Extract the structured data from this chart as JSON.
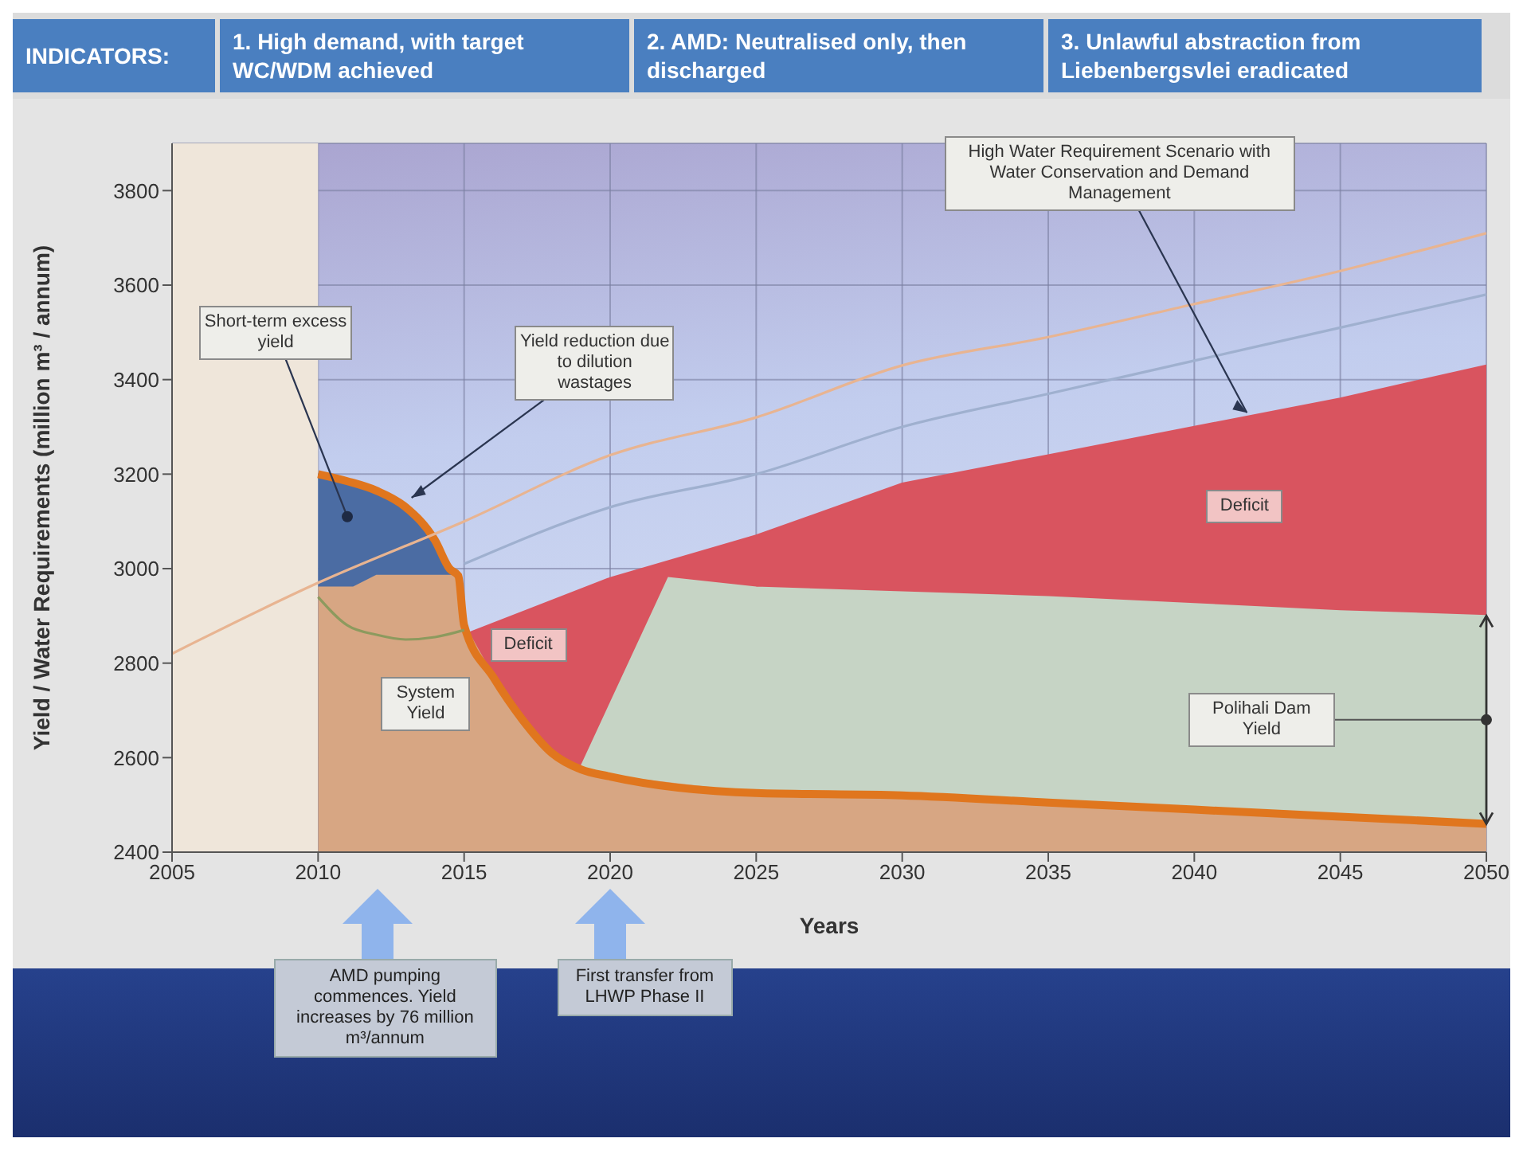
{
  "chart_data": {
    "type": "area",
    "title": "INDICATORS:",
    "xlabel": "Years",
    "ylabel": "Yield / Water Requirements (million m³ / annum)",
    "xlim": [
      2005,
      2050
    ],
    "xticks": [
      2005,
      2010,
      2015,
      2020,
      2025,
      2030,
      2035,
      2040,
      2045,
      2050
    ],
    "ylim": [
      2400,
      3900
    ],
    "yticks": [
      2400,
      2600,
      2800,
      3000,
      3200,
      3400,
      3600,
      3800
    ],
    "grid": true,
    "bands": [
      {
        "axis": "x",
        "from": 2005,
        "to": 2010,
        "color": "#efe6da"
      }
    ],
    "series": [
      {
        "color": "#d9545f",
        "x": [
          2015,
          2020,
          2025,
          2030,
          2035,
          2040,
          2045,
          2050
        ],
        "values": [
          2860,
          2980,
          3070,
          3180,
          3240,
          3300,
          3360,
          3430
        ]
      },
      {
        "color": "#c6d4c5",
        "x": [
          2019,
          2022,
          2025,
          2030,
          2035,
          2040,
          2045,
          2050
        ],
        "values": [
          2580,
          2980,
          2960,
          2950,
          2940,
          2925,
          2910,
          2900
        ]
      },
      {
        "color": "#4b6ca3",
        "x": [
          2010,
          2011,
          2012,
          2013,
          2014,
          2014.5,
          2014.8
        ],
        "values": [
          3200,
          3185,
          3165,
          3130,
          3060,
          3000,
          2985
        ]
      },
      {
        "color": "#d7a683",
        "x": [
          2010,
          2011.2,
          2012,
          2014.8,
          2015,
          2016,
          2017,
          2018,
          2019,
          2020,
          2025,
          2030,
          2035,
          2040,
          2045,
          2050
        ],
        "values": [
          2960,
          2960,
          2985,
          2985,
          2880,
          2770,
          2680,
          2610,
          2575,
          2560,
          2525,
          2520,
          2505,
          2490,
          2475,
          2460
        ]
      },
      {
        "type": "line",
        "color": "#e0761e",
        "x": [
          2010,
          2011,
          2012,
          2013,
          2014,
          2014.5,
          2014.8,
          2015,
          2016,
          2017,
          2018,
          2019,
          2020,
          2025,
          2030,
          2035,
          2040,
          2045,
          2050
        ],
        "values": [
          3200,
          3185,
          3165,
          3130,
          3060,
          3000,
          2985,
          2880,
          2770,
          2680,
          2610,
          2575,
          2560,
          2525,
          2520,
          2505,
          2490,
          2475,
          2460
        ]
      },
      {
        "type": "line",
        "color": "#8c9a5e",
        "x": [
          2010,
          2011,
          2012,
          2013,
          2014,
          2015
        ],
        "values": [
          2940,
          2880,
          2860,
          2850,
          2855,
          2870
        ]
      },
      {
        "type": "line",
        "color": "#e8b491",
        "x": [
          2005,
          2010,
          2015,
          2020,
          2025,
          2030,
          2035,
          2040,
          2045,
          2050
        ],
        "values": [
          2820,
          2970,
          3100,
          3240,
          3320,
          3430,
          3490,
          3560,
          3630,
          3710
        ]
      },
      {
        "type": "line",
        "color": "#9fb0cf",
        "x": [
          2015,
          2020,
          2025,
          2030,
          2035,
          2040,
          2045,
          2050
        ],
        "values": [
          3010,
          3130,
          3200,
          3300,
          3370,
          3440,
          3510,
          3580
        ]
      }
    ],
    "annotations": [
      "1. High demand, with target WC/WDM achieved",
      "2. AMD: Neutralised only, then discharged",
      "3. Unlawful abstraction from Liebenbergsvlei eradicated",
      {
        "text": "Short-term excess yield",
        "x": 2011,
        "y": 3110
      },
      {
        "text": "Yield reduction due to dilution wastages",
        "x": 2013.2,
        "y": 3150
      },
      {
        "text": "High Water Requirement Scenario with Water Conservation and Demand Management",
        "x": 2041.8,
        "y": 3330
      },
      "Deficit",
      "Deficit",
      "System Yield",
      "Polihali Dam Yield",
      "AMD pumping commences. Yield increases by 76 million m³/annum",
      "First transfer from LHWP Phase II"
    ]
  }
}
